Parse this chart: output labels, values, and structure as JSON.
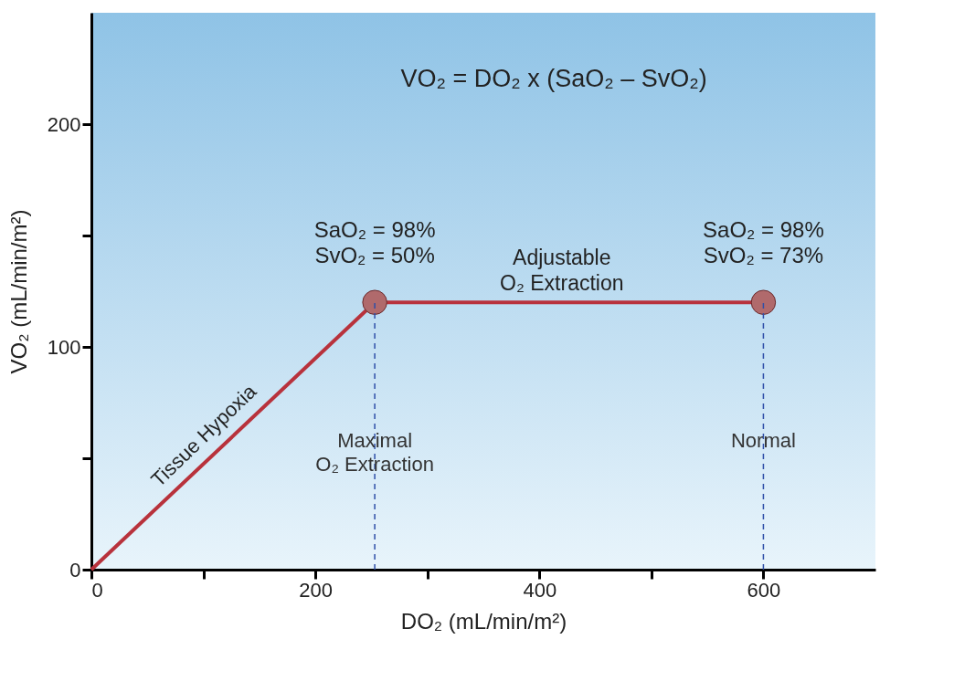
{
  "chart_data": {
    "type": "line",
    "xlabel": "DO₂  (mL/min/m²)",
    "ylabel": "VO₂  (mL/min/m²)",
    "xlim": [
      0,
      700
    ],
    "ylim": [
      0,
      250
    ],
    "xticks": [
      0,
      {
        "value": 100,
        "label": null
      },
      200,
      {
        "value": 300,
        "label": null
      },
      400,
      {
        "value": 500,
        "label": null
      },
      600
    ],
    "yticks": [
      0,
      {
        "value": 50,
        "label": null
      },
      100,
      {
        "value": 150,
        "label": null
      },
      200
    ],
    "grid": false,
    "series": [
      {
        "type": "line",
        "color": "#b8323c",
        "marker": "none",
        "x": [
          0,
          253,
          600
        ],
        "values": [
          0,
          120,
          120
        ]
      },
      {
        "type": "scatter",
        "color": "#b06a6c",
        "marker": "circle",
        "x": [
          253,
          600
        ],
        "values": [
          120,
          120
        ]
      }
    ],
    "ref_lines": [
      {
        "axis": "x",
        "value": 253,
        "label": "Maximal\nO₂ Extraction",
        "color": "#2f4fa8",
        "line_style": "dashed"
      },
      {
        "axis": "x",
        "value": 600,
        "label": "Normal",
        "color": "#2f4fa8",
        "line_style": "dashed"
      }
    ],
    "annotations": [
      "VO₂ = DO₂ x (SaO₂ – SvO₂)",
      {
        "text": "SaO₂ = 98%\nSvO₂ = 50%",
        "x": 253,
        "y": 120
      },
      {
        "text": "SaO₂ = 98%\nSvO₂ = 73%",
        "x": 600,
        "y": 120
      },
      {
        "text": "Adjustable\nO₂ Extraction",
        "x": 420,
        "y": 120
      },
      {
        "text": "Tissue Hypoxia",
        "x": 120,
        "y": 57
      }
    ]
  }
}
